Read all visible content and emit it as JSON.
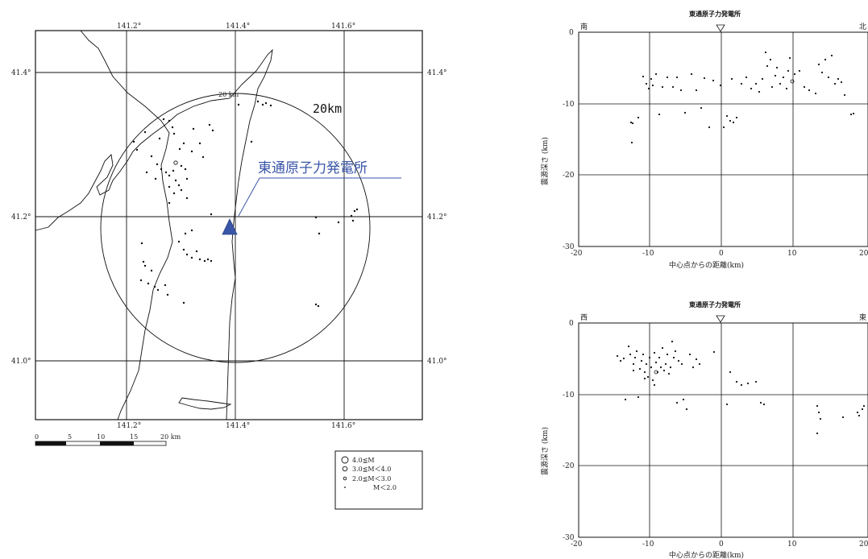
{
  "map": {
    "lon_ticks_top": [
      "141.2°",
      "141.4°",
      "141.6°"
    ],
    "lon_ticks_bottom": [
      "141.2°",
      "141.4°",
      "141.6°"
    ],
    "lat_ticks_left": [
      "41.4°",
      "41.2°",
      "41.0°"
    ],
    "lat_ticks_right": [
      "41.4°",
      "41.2°",
      "41.0°"
    ],
    "radius_small_label": "20 km",
    "radius_large_label": "20km",
    "plant_label": "東通原子力発電所",
    "plant_color": "#3a56a8",
    "scale_labels": [
      "0",
      "5",
      "10",
      "15",
      "20 km"
    ],
    "legend": [
      {
        "symbol": "large-circle",
        "label": "4.0≦M"
      },
      {
        "symbol": "medium-circle",
        "label": "3.0≦M＜4.0"
      },
      {
        "symbol": "small-circle",
        "label": "2.0≦M＜3.0"
      },
      {
        "symbol": "dot",
        "label": "M＜2.0"
      }
    ]
  },
  "cross_sections": [
    {
      "title": "東通原子力発電所",
      "left_dir": "南",
      "right_dir": "北",
      "x_ticks": [
        "-20",
        "-10",
        "0",
        "10",
        "20"
      ],
      "y_ticks": [
        "0",
        "-10",
        "-20",
        "-30"
      ],
      "xlabel": "中心点からの距離(km)",
      "ylabel": "震源深さ (km)"
    },
    {
      "title": "東通原子力発電所",
      "left_dir": "西",
      "right_dir": "東",
      "x_ticks": [
        "-20",
        "-10",
        "0",
        "10",
        "20"
      ],
      "y_ticks": [
        "0",
        "-10",
        "-20",
        "-30"
      ],
      "xlabel": "中心点からの距離(km)",
      "ylabel": "震源深さ (km)"
    }
  ]
}
